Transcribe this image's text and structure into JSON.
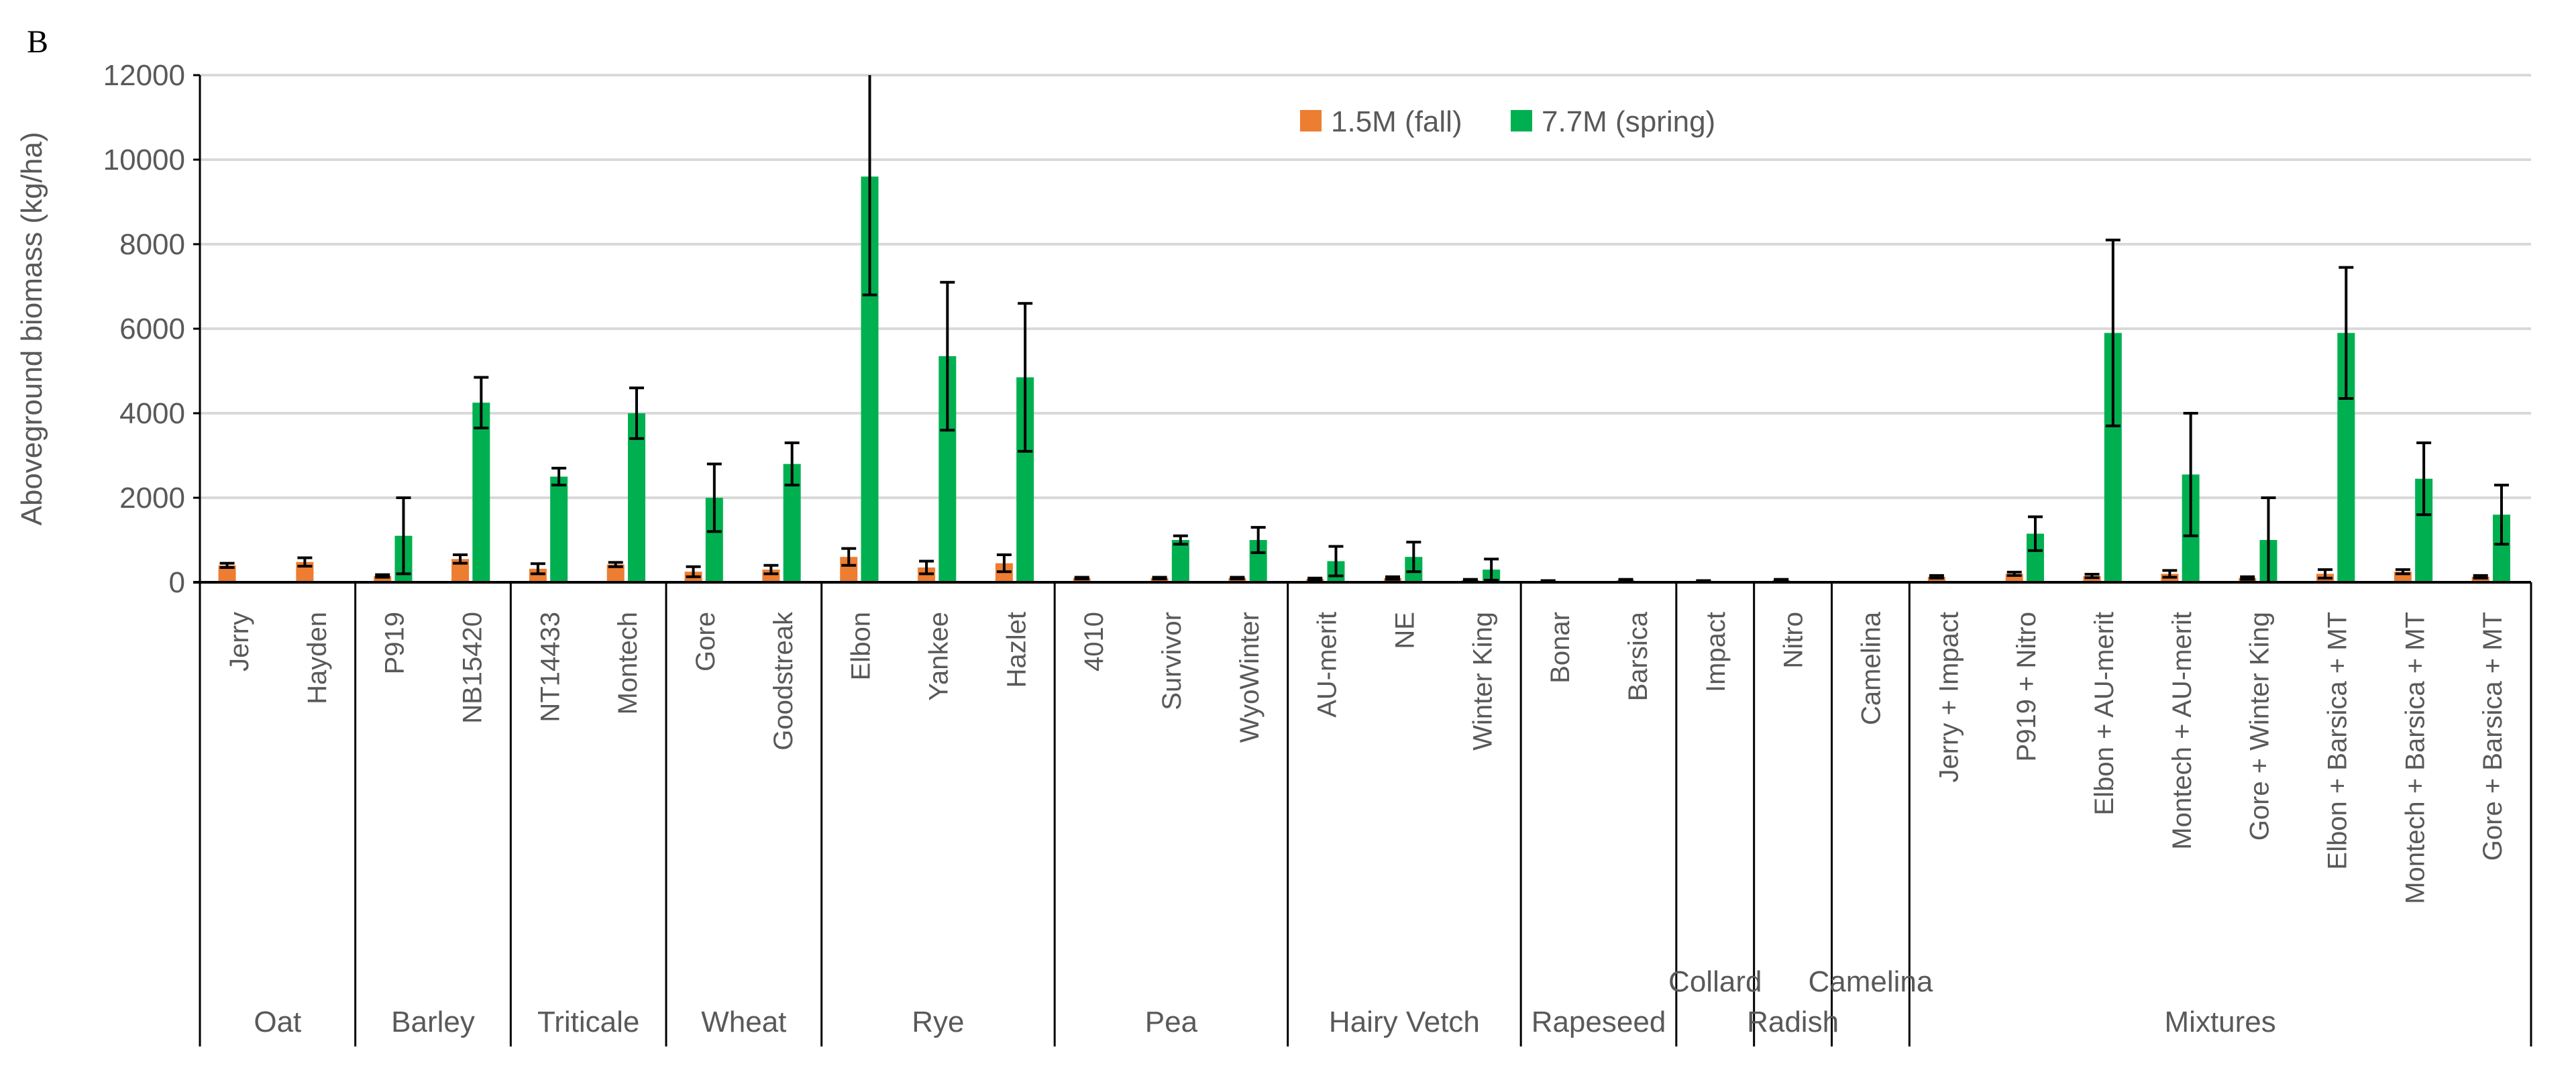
{
  "panel_label": "B",
  "chart_data": {
    "type": "bar",
    "ylabel": "Aboveground biomass (kg/ha)",
    "xlabel": "",
    "ylim": [
      0,
      12000
    ],
    "yticks": [
      0,
      2000,
      4000,
      6000,
      8000,
      10000,
      12000
    ],
    "grid": true,
    "legend_position": "top-center",
    "colors": {
      "1.5M (fall)": "#ED7D31",
      "7.7M (spring)": "#00B050"
    },
    "groups": [
      {
        "name": "Oat",
        "categories": [
          "Jerry",
          "Hayden"
        ]
      },
      {
        "name": "Barley",
        "categories": [
          "P919",
          "NB15420"
        ]
      },
      {
        "name": "Triticale",
        "categories": [
          "NT14433",
          "Montech"
        ]
      },
      {
        "name": "Wheat",
        "categories": [
          "Gore",
          "Goodstreak"
        ]
      },
      {
        "name": "Rye",
        "categories": [
          "Elbon",
          "Yankee",
          "Hazlet"
        ]
      },
      {
        "name": "Pea",
        "categories": [
          "4010",
          "Survivor",
          "WyoWinter"
        ]
      },
      {
        "name": "Hairy Vetch",
        "categories": [
          "AU-merit",
          "NE",
          "Winter King"
        ]
      },
      {
        "name": "Rapeseed",
        "categories": [
          "Bonar",
          "Barsica"
        ]
      },
      {
        "name": "Collard",
        "categories": [
          "Impact"
        ]
      },
      {
        "name": "Radish",
        "categories": [
          "Nitro"
        ]
      },
      {
        "name": "Camelina",
        "categories": [
          "Camelina"
        ]
      },
      {
        "name": "Mixtures",
        "categories": [
          "Jerry + Impact",
          "P919 + Nitro",
          "Elbon + AU-merit",
          "Montech + AU-merit",
          "Gore + Winter King",
          "Elbon + Barsica + MT",
          "Montech + Barsica + MT",
          "Gore + Barsica + MT"
        ]
      }
    ],
    "series": [
      {
        "name": "1.5M (fall)",
        "values": [
          400,
          480,
          150,
          550,
          320,
          420,
          250,
          300,
          600,
          350,
          450,
          100,
          100,
          100,
          80,
          100,
          50,
          30,
          50,
          30,
          50,
          0,
          130,
          200,
          150,
          200,
          100,
          200,
          250,
          130
        ],
        "errors": [
          50,
          100,
          30,
          100,
          120,
          50,
          120,
          100,
          200,
          150,
          200,
          20,
          20,
          20,
          20,
          30,
          20,
          10,
          20,
          10,
          20,
          0,
          30,
          40,
          40,
          80,
          30,
          100,
          50,
          30
        ]
      },
      {
        "name": "7.7M (spring)",
        "values": [
          0,
          0,
          1100,
          4250,
          2500,
          4000,
          2000,
          2800,
          9600,
          5350,
          4850,
          0,
          1000,
          1000,
          500,
          600,
          300,
          0,
          0,
          0,
          0,
          0,
          0,
          1150,
          5900,
          2550,
          1000,
          5900,
          2450,
          1600
        ],
        "errors": [
          0,
          0,
          900,
          600,
          200,
          600,
          800,
          500,
          2800,
          1750,
          1750,
          0,
          100,
          300,
          350,
          350,
          250,
          0,
          0,
          0,
          0,
          0,
          0,
          400,
          2200,
          1450,
          1000,
          1550,
          850,
          700
        ]
      }
    ]
  }
}
